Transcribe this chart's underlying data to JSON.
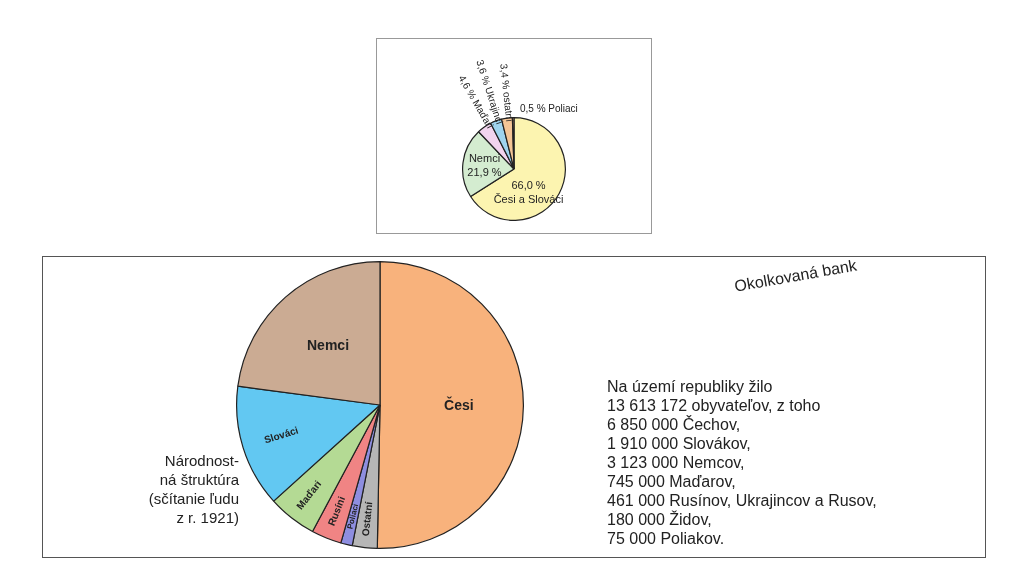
{
  "chart_data": [
    {
      "type": "pie",
      "categories": [
        "Česi a Slováci",
        "Nemci",
        "Maďari",
        "Ukrajinci",
        "ostatní",
        "Poliaci"
      ],
      "values": [
        66.0,
        21.9,
        4.6,
        3.6,
        3.4,
        0.5
      ],
      "value_labels": [
        "66,0 %",
        "21,9 %",
        "4,6 %",
        "3,6 %",
        "3,4 %",
        "0,5 %"
      ],
      "colors": [
        "#fcf4b0",
        "#d4ecd0",
        "#f2d4ee",
        "#9fd4ef",
        "#f4c596",
        "#e0a070"
      ],
      "legend": false
    },
    {
      "type": "pie",
      "categories": [
        "Česi",
        "Ostatní",
        "Poliaci",
        "Rusíni",
        "Maďari",
        "Slováci",
        "Nemci"
      ],
      "values": [
        50.3,
        2.8,
        1.3,
        3.4,
        5.5,
        13.8,
        22.9
      ],
      "colors": [
        "#f8b27c",
        "#b6b6b6",
        "#8e8ee0",
        "#f08484",
        "#b4da94",
        "#62c8f2",
        "#cbab93"
      ],
      "legend": false,
      "annotations": [
        "Národnost-\nná štruktúra\n(sčítanie ľudu\nz r. 1921)",
        "Na území republiky žilo\n13 613 172 obyvateľov, z toho\n6 850 000 Čechov,\n1 910 000 Slovákov,\n3 123 000 Nemcov,\n745 000 Maďarov,\n461 000 Rusínov, Ukrajincov a Rusov,\n180 000 Židov,\n75 000 Poliakov.",
        "Okolkovaná bank"
      ]
    }
  ]
}
